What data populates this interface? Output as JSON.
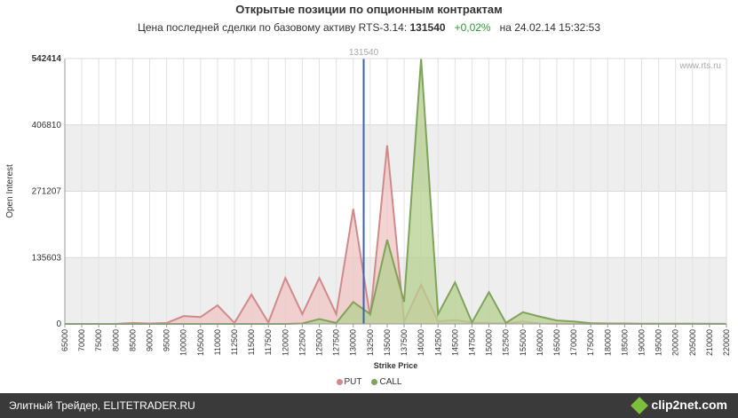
{
  "header": {
    "title": "Открытые позиции по опционным контрактам",
    "subtitle_prefix": "Цена последней сделки по базовому активу RTS-3.14:",
    "last_price": "131540",
    "change": "+0,02%",
    "subtitle_suffix": "на 24.02.14 15:32:53"
  },
  "watermark": "www.rts.ru",
  "footer": {
    "left_text": "Элитный Трейдер, ELITETRADER.RU",
    "right_text": "clip2net.com"
  },
  "colors": {
    "put": "#d08a8a",
    "put_fill": "#f0c4c4",
    "call": "#7fa35a",
    "call_fill": "#b5d08f",
    "marker": "#3a64b0"
  },
  "chart_data": {
    "type": "area",
    "title": "",
    "xlabel": "Strike Price",
    "ylabel": "Open Interest",
    "x": [
      65000,
      70000,
      75000,
      80000,
      85000,
      90000,
      95000,
      100000,
      105000,
      110000,
      112500,
      115000,
      117500,
      120000,
      122500,
      125000,
      127500,
      130000,
      132500,
      135000,
      137500,
      140000,
      142500,
      145000,
      147500,
      150000,
      152500,
      155000,
      160000,
      165000,
      170000,
      175000,
      180000,
      185000,
      190000,
      195000,
      200000,
      205000,
      210000,
      220000
    ],
    "series": [
      {
        "name": "PUT",
        "values": [
          0,
          0,
          0,
          0,
          2000,
          1000,
          2000,
          16000,
          14000,
          38000,
          2000,
          60000,
          3000,
          94000,
          20000,
          94000,
          20000,
          235000,
          15000,
          365000,
          5000,
          80000,
          5000,
          8000,
          3000,
          2000,
          1000,
          5000,
          1000,
          500,
          500,
          300,
          300,
          200,
          200,
          200,
          200,
          200,
          200,
          200
        ]
      },
      {
        "name": "CALL",
        "values": [
          0,
          0,
          0,
          0,
          0,
          0,
          0,
          0,
          0,
          0,
          0,
          0,
          0,
          0,
          1000,
          10000,
          2000,
          45000,
          20000,
          172000,
          45000,
          542414,
          20000,
          85000,
          3000,
          65000,
          2000,
          24000,
          15000,
          7000,
          5000,
          1500,
          1000,
          1000,
          500,
          500,
          500,
          500,
          300,
          200
        ]
      }
    ],
    "marker": {
      "label": "131540",
      "x": 131540
    },
    "ylim": [
      0,
      542414
    ],
    "yticks": [
      0,
      135603,
      271207,
      406810,
      542414
    ],
    "xtick_labels": [
      "65000",
      "70000",
      "75000",
      "80000",
      "85000",
      "90000",
      "95000",
      "100000",
      "105000",
      "110000",
      "112500",
      "115000",
      "117500",
      "120000",
      "122500",
      "125000",
      "127500",
      "130000",
      "132500",
      "135000",
      "137500",
      "140000",
      "142500",
      "145000",
      "147500",
      "150000",
      "152500",
      "155000",
      "160000",
      "165000",
      "170000",
      "175000",
      "180000",
      "185000",
      "190000",
      "195000",
      "200000",
      "205000",
      "210000",
      "220000"
    ],
    "grid": true,
    "legend": "bottom-center"
  }
}
